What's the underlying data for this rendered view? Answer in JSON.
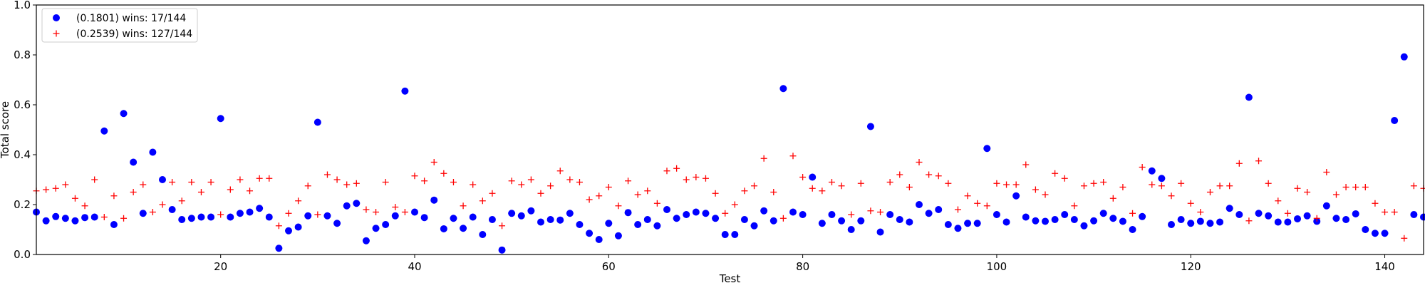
{
  "chart_data": {
    "type": "scatter",
    "title": "",
    "xlabel": "Test",
    "ylabel": "Total score",
    "xlim": [
      1,
      144
    ],
    "ylim": [
      0.0,
      1.0
    ],
    "xticks": [
      20,
      40,
      60,
      80,
      100,
      120,
      140
    ],
    "yticks": [
      0.0,
      0.2,
      0.4,
      0.6,
      0.8,
      1.0
    ],
    "ytick_labels": [
      "0.0",
      "0.2",
      "0.4",
      "0.6",
      "0.8",
      "1.0"
    ],
    "grid": false,
    "legend_position": "top-left",
    "series": [
      {
        "name": "(0.1801) wins: 17/144",
        "marker": "circle",
        "color": "#0000ff",
        "values": [
          0.17,
          0.135,
          0.152,
          0.145,
          0.135,
          0.148,
          0.15,
          0.495,
          0.12,
          0.565,
          0.37,
          0.165,
          0.41,
          0.3,
          0.18,
          0.14,
          0.145,
          0.15,
          0.15,
          0.545,
          0.15,
          0.165,
          0.17,
          0.185,
          0.15,
          0.025,
          0.095,
          0.11,
          0.155,
          0.53,
          0.155,
          0.125,
          0.195,
          0.205,
          0.055,
          0.105,
          0.12,
          0.155,
          0.655,
          0.17,
          0.148,
          0.218,
          0.103,
          0.145,
          0.105,
          0.15,
          0.08,
          0.14,
          0.018,
          0.165,
          0.155,
          0.175,
          0.13,
          0.14,
          0.138,
          0.165,
          0.12,
          0.085,
          0.06,
          0.125,
          0.075,
          0.168,
          0.12,
          0.14,
          0.115,
          0.18,
          0.145,
          0.16,
          0.17,
          0.165,
          0.145,
          0.08,
          0.08,
          0.14,
          0.115,
          0.175,
          0.135,
          0.665,
          0.17,
          0.16,
          0.31,
          0.125,
          0.16,
          0.135,
          0.1,
          0.135,
          0.513,
          0.09,
          0.16,
          0.14,
          0.13,
          0.2,
          0.165,
          0.18,
          0.12,
          0.105,
          0.125,
          0.125,
          0.425,
          0.16,
          0.13,
          0.235,
          0.15,
          0.135,
          0.133,
          0.14,
          0.16,
          0.14,
          0.115,
          0.135,
          0.165,
          0.145,
          0.133,
          0.1,
          0.152,
          0.335,
          0.305,
          0.12,
          0.14,
          0.125,
          0.133,
          0.125,
          0.13,
          0.185,
          0.16,
          0.63,
          0.165,
          0.155,
          0.13,
          0.13,
          0.143,
          0.155,
          0.133,
          0.195,
          0.145,
          0.14,
          0.163,
          0.1,
          0.085,
          0.085,
          0.537,
          0.792,
          0.16,
          0.15
        ]
      },
      {
        "name": "(0.2539) wins: 127/144",
        "marker": "plus",
        "color": "#ff0000",
        "values": [
          0.255,
          0.26,
          0.265,
          0.28,
          0.225,
          0.195,
          0.3,
          0.15,
          0.235,
          0.145,
          0.25,
          0.28,
          0.17,
          0.2,
          0.29,
          0.215,
          0.29,
          0.25,
          0.29,
          0.16,
          0.26,
          0.3,
          0.255,
          0.305,
          0.305,
          0.115,
          0.165,
          0.215,
          0.275,
          0.16,
          0.32,
          0.3,
          0.28,
          0.285,
          0.18,
          0.17,
          0.29,
          0.19,
          0.17,
          0.315,
          0.295,
          0.37,
          0.325,
          0.29,
          0.195,
          0.28,
          0.215,
          0.245,
          0.115,
          0.295,
          0.28,
          0.3,
          0.245,
          0.275,
          0.335,
          0.3,
          0.29,
          0.22,
          0.235,
          0.27,
          0.195,
          0.295,
          0.24,
          0.255,
          0.205,
          0.335,
          0.345,
          0.3,
          0.31,
          0.305,
          0.245,
          0.165,
          0.2,
          0.255,
          0.275,
          0.385,
          0.25,
          0.145,
          0.395,
          0.31,
          0.265,
          0.255,
          0.29,
          0.275,
          0.16,
          0.285,
          0.175,
          0.17,
          0.29,
          0.32,
          0.27,
          0.37,
          0.32,
          0.315,
          0.285,
          0.18,
          0.235,
          0.205,
          0.195,
          0.285,
          0.28,
          0.28,
          0.36,
          0.26,
          0.24,
          0.325,
          0.305,
          0.195,
          0.275,
          0.285,
          0.29,
          0.225,
          0.27,
          0.165,
          0.35,
          0.28,
          0.275,
          0.235,
          0.285,
          0.205,
          0.17,
          0.25,
          0.275,
          0.275,
          0.365,
          0.135,
          0.375,
          0.285,
          0.215,
          0.165,
          0.265,
          0.25,
          0.145,
          0.33,
          0.24,
          0.27,
          0.27,
          0.27,
          0.205,
          0.17,
          0.17,
          0.065,
          0.275,
          0.265
        ]
      }
    ]
  }
}
